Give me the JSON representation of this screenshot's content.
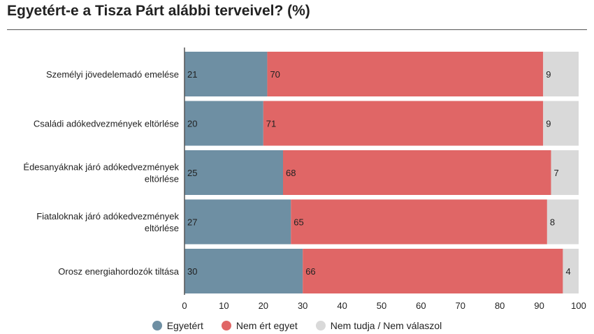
{
  "title": "Egyetért-e a Tisza Párt alábbi terveivel? (%)",
  "chart_data": {
    "type": "bar",
    "orientation": "horizontal",
    "stacked": true,
    "categories": [
      [
        "Személyi jövedelemadó emelése"
      ],
      [
        "Családi adókedvezmények eltörlése"
      ],
      [
        "Édesanyáknak járó adókedvezmények",
        "eltörlése"
      ],
      [
        "Fiataloknak járó adókedvezmények",
        "eltörlése"
      ],
      [
        "Orosz energiahordozók tiltása"
      ]
    ],
    "series": [
      {
        "name": "Egyetért",
        "color": "#6e8fa3",
        "values": [
          21,
          20,
          25,
          27,
          30
        ]
      },
      {
        "name": "Nem ért egyet",
        "color": "#e06666",
        "values": [
          70,
          71,
          68,
          65,
          66
        ]
      },
      {
        "name": "Nem tudja / Nem válaszol",
        "color": "#d9d9d9",
        "values": [
          9,
          9,
          7,
          8,
          4
        ]
      }
    ],
    "xlim": [
      0,
      100
    ],
    "xticks": [
      0,
      10,
      20,
      30,
      40,
      50,
      60,
      70,
      80,
      90,
      100
    ],
    "grid": false,
    "legend_position": "bottom"
  }
}
